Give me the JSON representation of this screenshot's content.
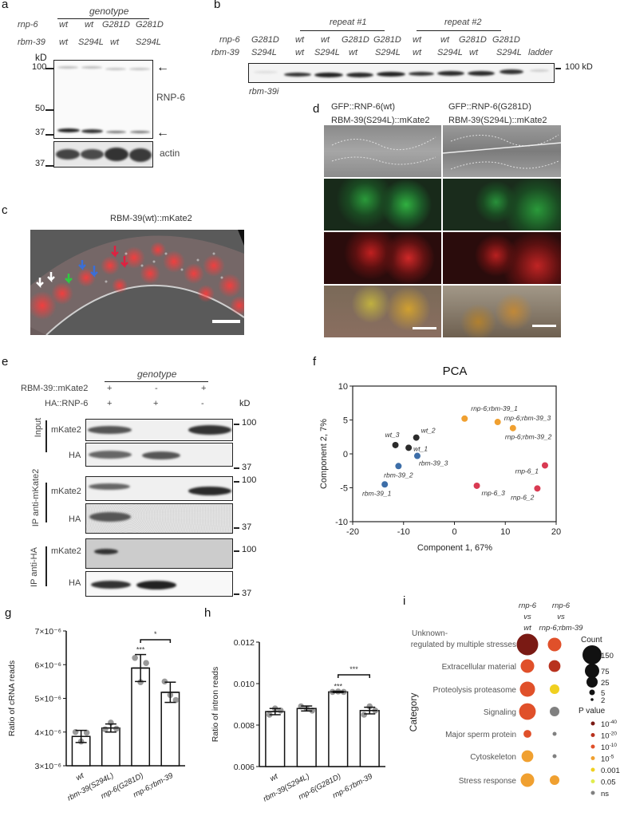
{
  "panels": {
    "a": {
      "label": "a",
      "header": "genotype",
      "row_labels": [
        "rnp-6",
        "rbm-39"
      ],
      "columns": [
        {
          "rnp6": "wt",
          "rbm39": "wt"
        },
        {
          "rnp6": "wt",
          "rbm39": "S294L"
        },
        {
          "rnp6": "G281D",
          "rbm39": "wt"
        },
        {
          "rnp6": "G281D",
          "rbm39": "S294L"
        }
      ],
      "kd_label": "kD",
      "markers": [
        "100",
        "50",
        "37"
      ],
      "actin_marker": "37",
      "blot_label": "RNP-6",
      "actin_label": "actin",
      "arrow_glyph": "←"
    },
    "b": {
      "label": "b",
      "repeat1": "repeat #1",
      "repeat2": "repeat #2",
      "row_labels": [
        "rnp-6",
        "rbm-39"
      ],
      "columns": [
        {
          "rnp6": "G281D",
          "rbm39": "S294L"
        },
        {
          "rnp6": "wt",
          "rbm39": "wt"
        },
        {
          "rnp6": "wt",
          "rbm39": "S294L"
        },
        {
          "rnp6": "G281D",
          "rbm39": "wt"
        },
        {
          "rnp6": "G281D",
          "rbm39": "S294L"
        },
        {
          "rnp6": "wt",
          "rbm39": "wt"
        },
        {
          "rnp6": "wt",
          "rbm39": "S294L"
        },
        {
          "rnp6": "G281D",
          "rbm39": "wt"
        },
        {
          "rnp6": "G281D",
          "rbm39": "S294L"
        },
        {
          "rnp6": "",
          "rbm39": "ladder"
        }
      ],
      "marker": "100 kD",
      "footnote": "rbm-39i"
    },
    "c": {
      "label": "c",
      "title": "RBM-39(wt)::mKate2"
    },
    "d": {
      "label": "d",
      "col1_line1": "GFP::RNP-6(wt)",
      "col1_line2": "RBM-39(S294L)::mKate2",
      "col2_line1": "GFP::RNP-6(G281D)",
      "col2_line2": "RBM-39(S294L)::mKate2"
    },
    "e": {
      "label": "e",
      "header": "genotype",
      "row1_label": "RBM-39::mKate2",
      "row1_values": [
        "+",
        "-",
        "+"
      ],
      "row2_label": "HA::RNP-6",
      "row2_values": [
        "+",
        "+",
        "-"
      ],
      "kd_label": "kD",
      "groups": [
        {
          "name": "Input",
          "rows": [
            "mKate2",
            "HA"
          ],
          "markers": [
            "100",
            "37"
          ]
        },
        {
          "name": "IP anti-mKate2",
          "rows": [
            "mKate2",
            "HA"
          ],
          "markers": [
            "100",
            "37"
          ]
        },
        {
          "name": "IP anti-HA",
          "rows": [
            "mKate2",
            "HA"
          ],
          "markers": [
            "100",
            "37"
          ]
        }
      ]
    },
    "f": {
      "label": "f"
    },
    "g": {
      "label": "g"
    },
    "h": {
      "label": "h"
    },
    "i": {
      "label": "i",
      "col1": [
        "rnp-6",
        "vs",
        "wt"
      ],
      "col2": [
        "rnp-6",
        "vs",
        "rnp-6;rbm-39"
      ],
      "ylabel": "Category",
      "count_title": "Count",
      "count_levels": [
        "150",
        "75",
        "25",
        "5",
        "2"
      ],
      "pvalue_title": "P value",
      "pvalue_levels": [
        {
          "label": "10",
          "exp": "-40",
          "color": "#7a1a14"
        },
        {
          "label": "10",
          "exp": "-20",
          "color": "#b8321e"
        },
        {
          "label": "10",
          "exp": "-10",
          "color": "#e0502a"
        },
        {
          "label": "10",
          "exp": "-5",
          "color": "#f0a030"
        },
        {
          "label": "0.001",
          "exp": "",
          "color": "#f0d020"
        },
        {
          "label": "0.05",
          "exp": "",
          "color": "#e0ec50"
        },
        {
          "label": "ns",
          "exp": "",
          "color": "#808080"
        }
      ]
    }
  },
  "chart_data": [
    {
      "id": "f",
      "type": "scatter",
      "title": "PCA",
      "xlabel": "Component 1, 67%",
      "ylabel": "Component 2, 7%",
      "xlim": [
        -20,
        20
      ],
      "ylim": [
        -10,
        10
      ],
      "xticks": [
        "-20",
        "-10",
        "0",
        "10",
        "20"
      ],
      "yticks": [
        "10",
        "5",
        "0",
        "-5",
        "-10"
      ],
      "points": [
        {
          "label": "wt_1",
          "x": -9,
          "y": 0.9,
          "color": "#2b2b2b"
        },
        {
          "label": "wt_2",
          "x": -7.5,
          "y": 2.4,
          "color": "#2b2b2b"
        },
        {
          "label": "wt_3",
          "x": -11.6,
          "y": 1.3,
          "color": "#2b2b2b"
        },
        {
          "label": "rbm-39_1",
          "x": -13.7,
          "y": -4.5,
          "color": "#3d6ea8"
        },
        {
          "label": "rbm-39_2",
          "x": -11,
          "y": -1.8,
          "color": "#3d6ea8"
        },
        {
          "label": "rbm-39_3",
          "x": -7.3,
          "y": -0.3,
          "color": "#3d6ea8"
        },
        {
          "label": "rnp-6;rbm-39_1",
          "x": 2,
          "y": 5.2,
          "color": "#f0a030"
        },
        {
          "label": "rnp-6;rbm-39_2",
          "x": 11.5,
          "y": 3.8,
          "color": "#f0a030"
        },
        {
          "label": "rnp-6;rbm-39_3",
          "x": 8.5,
          "y": 4.7,
          "color": "#f0a030"
        },
        {
          "label": "rnp-6_1",
          "x": 17.8,
          "y": -1.7,
          "color": "#d93a52"
        },
        {
          "label": "rnp-6_2",
          "x": 16.3,
          "y": -5.1,
          "color": "#d93a52"
        },
        {
          "label": "rnp-6_3",
          "x": 4.4,
          "y": -4.7,
          "color": "#d93a52"
        }
      ]
    },
    {
      "id": "g",
      "type": "bar",
      "title": "",
      "xlabel": "",
      "ylabel": "Ratio of cRNA reads",
      "ylim": [
        3e-06,
        7e-06
      ],
      "yticks": [
        "3×10⁻⁶",
        "4×10⁻⁶",
        "5×10⁻⁶",
        "6×10⁻⁶",
        "7×10⁻⁶"
      ],
      "categories": [
        "wt",
        "rbm-39(S294L)",
        "rnp-6(G281D)",
        "rnp-6;rbm-39"
      ],
      "values": [
        3.87e-06,
        4.12e-06,
        5.9e-06,
        5.18e-06
      ],
      "errors": [
        1.8e-07,
        1.2e-07,
        4e-07,
        3e-07
      ],
      "points": [
        [
          4e-06,
          3.72e-06,
          3.98e-06
        ],
        [
          4.08e-06,
          4.28e-06,
          4.1e-06
        ],
        [
          6.2e-06,
          5.48e-06,
          6.05e-06
        ],
        [
          5.5e-06,
          5.1e-06,
          4.95e-06
        ]
      ],
      "annotations": [
        {
          "cat": 2,
          "text": "***"
        },
        {
          "between": [
            2,
            3
          ],
          "text": "*"
        }
      ]
    },
    {
      "id": "h",
      "type": "bar",
      "title": "",
      "xlabel": "",
      "ylabel": "Ratio of intron reads",
      "ylim": [
        0.006,
        0.012
      ],
      "yticks": [
        "0.006",
        "0.008",
        "0.010",
        "0.012"
      ],
      "categories": [
        "wt",
        "rbm-39(S294L)",
        "rnp-6(G281D)",
        "rnp-6;rbm-39"
      ],
      "values": [
        0.00865,
        0.0088,
        0.0096,
        0.0087
      ],
      "errors": [
        0.00015,
        0.00012,
        3e-05,
        0.00016
      ],
      "points": [
        [
          0.0085,
          0.0088,
          0.0087
        ],
        [
          0.0089,
          0.0088,
          0.0087
        ],
        [
          0.0096,
          0.00962,
          0.0096
        ],
        [
          0.0085,
          0.0089,
          0.0087
        ]
      ],
      "annotations": [
        {
          "cat": 2,
          "text": "***"
        },
        {
          "between": [
            2,
            3
          ],
          "text": "***"
        }
      ]
    },
    {
      "id": "i",
      "type": "bubble",
      "title": "",
      "ylabel": "Category",
      "categories": [
        "Unknown- regulated by multiple stresses",
        "Extracellular material",
        "Proteolysis proteasome",
        "Signaling",
        "Major sperm protein",
        "Cytoskeleton",
        "Stress response"
      ],
      "columns": [
        "rnp-6 vs wt",
        "rnp-6 vs rnp-6;rbm-39"
      ],
      "series": [
        {
          "name": "rnp-6 vs wt",
          "sizes": [
            150,
            60,
            75,
            90,
            20,
            45,
            60
          ],
          "colors": [
            "#7a1a14",
            "#e0502a",
            "#e0502a",
            "#e0502a",
            "#e0502a",
            "#f0a030",
            "#f0a030"
          ]
        },
        {
          "name": "rnp-6 vs rnp-6;rbm-39",
          "sizes": [
            60,
            45,
            30,
            30,
            2,
            2,
            30
          ],
          "colors": [
            "#e0502a",
            "#b8321e",
            "#f0d020",
            "#808080",
            "#808080",
            "#808080",
            "#f0a030"
          ]
        }
      ]
    }
  ]
}
